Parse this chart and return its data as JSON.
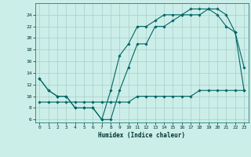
{
  "title": "",
  "xlabel": "Humidex (Indice chaleur)",
  "bg_color": "#cceee8",
  "grid_color": "#aacccc",
  "line_color": "#006666",
  "xlim": [
    -0.5,
    23.5
  ],
  "ylim": [
    5.5,
    26
  ],
  "xticks": [
    0,
    1,
    2,
    3,
    4,
    5,
    6,
    7,
    8,
    9,
    10,
    11,
    12,
    13,
    14,
    15,
    16,
    17,
    18,
    19,
    20,
    21,
    22,
    23
  ],
  "yticks": [
    6,
    8,
    10,
    12,
    14,
    16,
    18,
    20,
    22,
    24
  ],
  "line1_x": [
    0,
    1,
    2,
    3,
    4,
    5,
    6,
    7,
    8,
    9,
    10,
    11,
    12,
    13,
    14,
    15,
    16,
    17,
    18,
    19,
    20,
    21,
    22,
    23
  ],
  "line1_y": [
    13,
    11,
    10,
    10,
    8,
    8,
    8,
    6,
    11,
    17,
    19,
    22,
    22,
    23,
    24,
    24,
    24,
    25,
    25,
    25,
    24,
    22,
    21,
    15
  ],
  "line2_x": [
    0,
    1,
    2,
    3,
    4,
    5,
    6,
    7,
    8,
    9,
    10,
    11,
    12,
    13,
    14,
    15,
    16,
    17,
    18,
    19,
    20,
    21,
    22,
    23
  ],
  "line2_y": [
    13,
    11,
    10,
    10,
    8,
    8,
    8,
    6,
    6,
    11,
    15,
    19,
    19,
    22,
    22,
    23,
    24,
    24,
    24,
    25,
    25,
    24,
    21,
    11
  ],
  "line3_x": [
    0,
    1,
    2,
    3,
    4,
    5,
    6,
    7,
    8,
    9,
    10,
    11,
    12,
    13,
    14,
    15,
    16,
    17,
    18,
    19,
    20,
    21,
    22,
    23
  ],
  "line3_y": [
    9,
    9,
    9,
    9,
    9,
    9,
    9,
    9,
    9,
    9,
    9,
    10,
    10,
    10,
    10,
    10,
    10,
    10,
    11,
    11,
    11,
    11,
    11,
    11
  ]
}
